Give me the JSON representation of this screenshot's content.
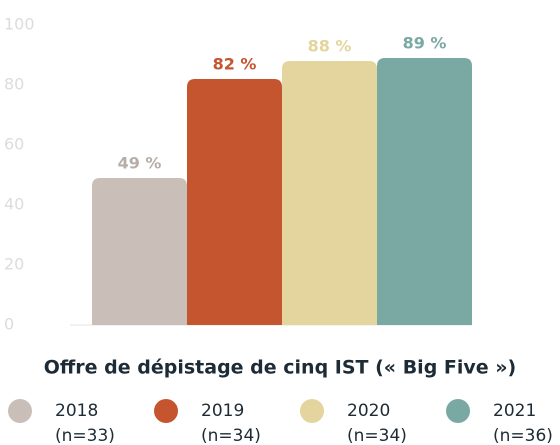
{
  "chart_data": {
    "type": "bar",
    "xlabel": "Offre de dépistage de cinq IST (« Big Five »)",
    "categories": [
      null
    ],
    "series": [
      {
        "name": "2018",
        "sample": "(n=33)",
        "color": "#c9bfb8",
        "values": [
          49
        ],
        "value_labels": [
          "49 %"
        ]
      },
      {
        "name": "2019",
        "sample": "(n=34)",
        "color": "#c4552f",
        "values": [
          82
        ],
        "value_labels": [
          "82 %"
        ]
      },
      {
        "name": "2020",
        "sample": "(n=34)",
        "color": "#e3d59d",
        "values": [
          88
        ],
        "value_labels": [
          "88 %"
        ]
      },
      {
        "name": "2021",
        "sample": "(n=36)",
        "color": "#7aa8a3",
        "values": [
          89
        ],
        "value_labels": [
          "89 %"
        ]
      }
    ],
    "ylim": [
      0,
      100
    ],
    "yticks": [
      0,
      20,
      40,
      60,
      80,
      100
    ],
    "grid": false
  }
}
